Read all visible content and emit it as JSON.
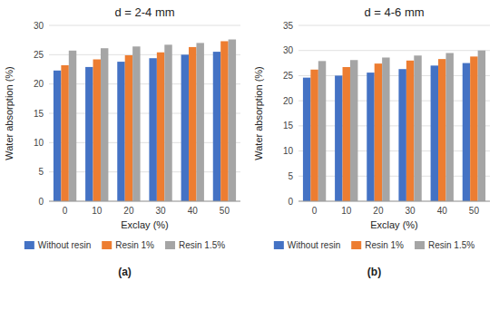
{
  "chart_data": [
    {
      "type": "bar",
      "title": "d = 2-4 mm",
      "xlabel": "Exclay (%)",
      "ylabel": "Water absorption (%)",
      "categories": [
        0,
        10,
        20,
        30,
        40,
        50
      ],
      "series": [
        {
          "name": "Without resin",
          "color": "#4472C4",
          "values": [
            22.3,
            22.9,
            23.8,
            24.4,
            25.0,
            25.5
          ]
        },
        {
          "name": "Resin 1%",
          "color": "#ED7D31",
          "values": [
            23.2,
            24.2,
            24.9,
            25.4,
            26.3,
            27.3
          ]
        },
        {
          "name": "Resin 1.5%",
          "color": "#A5A5A5",
          "values": [
            25.7,
            26.1,
            26.4,
            26.7,
            27.0,
            27.6
          ]
        }
      ],
      "ylim": [
        0,
        30
      ],
      "yticks": [
        0,
        5,
        10,
        15,
        20,
        25,
        30
      ],
      "grid": true,
      "legend": "bottom",
      "annotations": [
        "(a)"
      ]
    },
    {
      "type": "bar",
      "title": "d = 4-6 mm",
      "xlabel": "Exclay (%)",
      "ylabel": "Water absorption (%)",
      "categories": [
        0,
        10,
        20,
        30,
        40,
        50
      ],
      "series": [
        {
          "name": "Without resin",
          "color": "#4472C4",
          "values": [
            24.6,
            25.0,
            25.6,
            26.3,
            27.0,
            27.5
          ]
        },
        {
          "name": "Resin 1%",
          "color": "#ED7D31",
          "values": [
            26.2,
            26.7,
            27.4,
            28.0,
            28.3,
            28.8
          ]
        },
        {
          "name": "Resin 1.5%",
          "color": "#A5A5A5",
          "values": [
            27.9,
            28.1,
            28.6,
            29.0,
            29.5,
            30.0
          ]
        }
      ],
      "ylim": [
        0,
        35
      ],
      "yticks": [
        0,
        5,
        10,
        15,
        20,
        25,
        30,
        35
      ],
      "grid": true,
      "legend": "bottom",
      "annotations": [
        "(b)"
      ]
    }
  ]
}
